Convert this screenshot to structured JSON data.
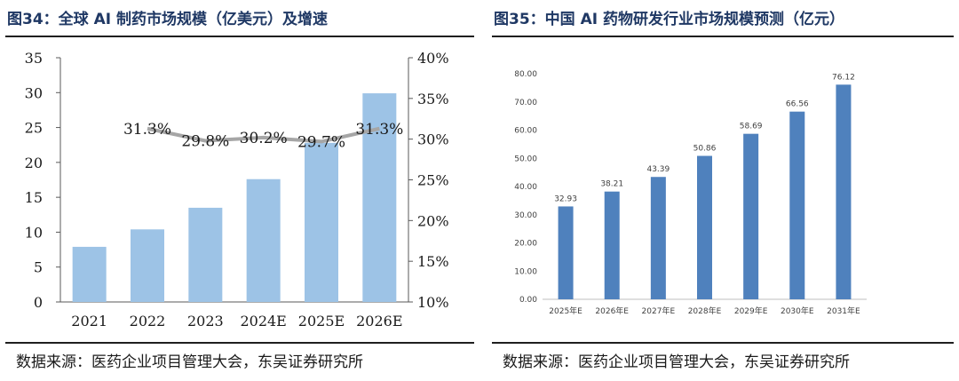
{
  "left_panel": {
    "title": "图34：全球 AI 制药市场规模（亿美元）及增速",
    "source": "数据来源：医药企业项目管理大会，东吴证券研究所"
  },
  "right_panel": {
    "title": "图35：中国 AI 药物研发行业市场规模预测（亿元）",
    "source": "数据来源：医药企业项目管理大会，东吴证券研究所"
  },
  "colors": {
    "left_bar": "#9dc3e6",
    "right_bar": "#4f81bd",
    "growth_line": "#a6a6a6",
    "title": "#1f3864"
  },
  "chart_data": [
    {
      "type": "bar",
      "categories": [
        "2021",
        "2022",
        "2023",
        "2024E",
        "2025E",
        "2026E"
      ],
      "series": [
        {
          "values": [
            7.9,
            10.4,
            13.5,
            17.6,
            22.8,
            29.9
          ]
        }
      ],
      "line_series": {
        "axis": "right",
        "categories": [
          "2022",
          "2023",
          "2024E",
          "2025E",
          "2026E"
        ],
        "values": [
          31.3,
          29.8,
          30.2,
          29.7,
          31.3
        ],
        "labels": [
          "31.3%",
          "29.8%",
          "30.2%",
          "29.7%",
          "31.3%"
        ]
      },
      "y_ticks": [
        "0",
        "5",
        "10",
        "15",
        "20",
        "25",
        "30",
        "35"
      ],
      "y2_ticks": [
        "10%",
        "15%",
        "20%",
        "25%",
        "30%",
        "35%",
        "40%"
      ],
      "ylim": [
        0,
        35
      ],
      "y2lim": [
        10,
        40
      ],
      "grid": false
    },
    {
      "type": "bar",
      "categories": [
        "2025年E",
        "2026年E",
        "2027年E",
        "2028年E",
        "2029年E",
        "2030年E",
        "2031年E"
      ],
      "series": [
        {
          "values": [
            32.93,
            38.21,
            43.39,
            50.86,
            58.69,
            66.56,
            76.12
          ]
        }
      ],
      "data_labels": [
        "32.93",
        "38.21",
        "43.39",
        "50.86",
        "58.69",
        "66.56",
        "76.12"
      ],
      "y_ticks": [
        "0.00",
        "10.00",
        "20.00",
        "30.00",
        "40.00",
        "50.00",
        "60.00",
        "70.00",
        "80.00"
      ],
      "ylim": [
        0,
        80
      ],
      "grid": false
    }
  ]
}
